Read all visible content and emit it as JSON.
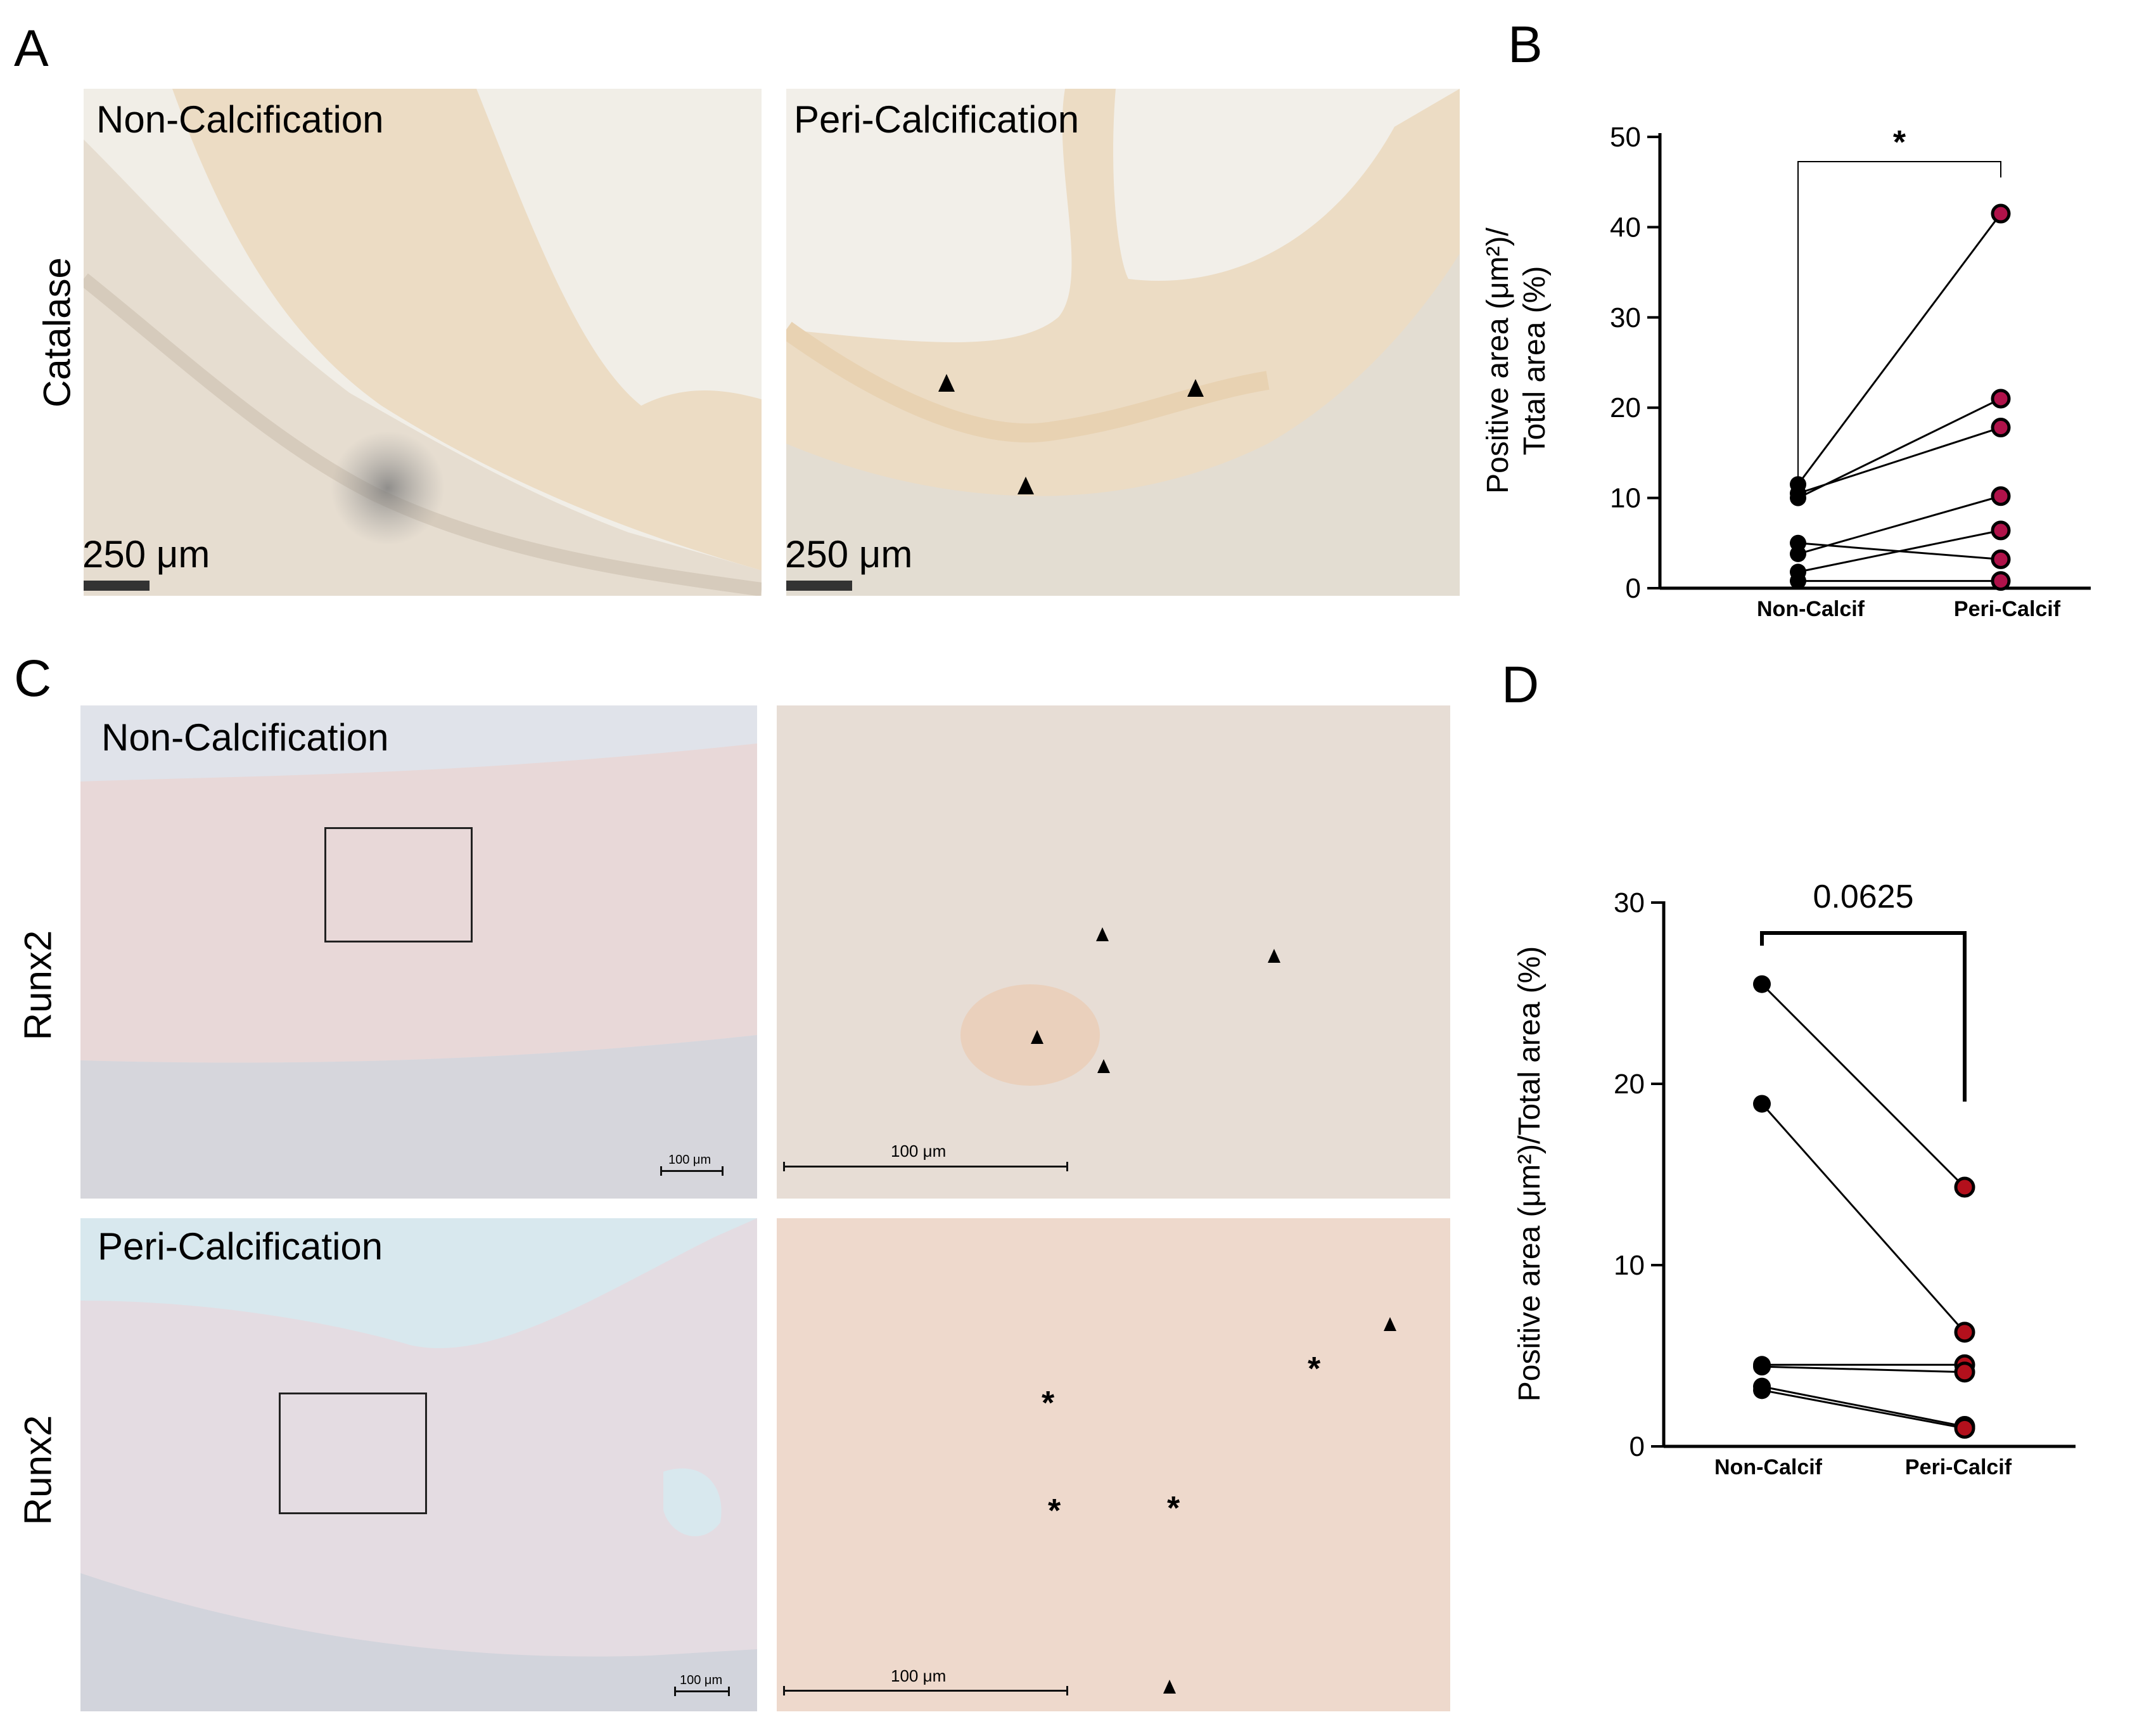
{
  "figure": {
    "panels": {
      "A": "A",
      "B": "B",
      "C": "C",
      "D": "D"
    },
    "panel_A": {
      "row_label": "Catalase",
      "left_title": "Non-Calcification",
      "right_title": "Peri-Calcification",
      "scale_left": "250 μm",
      "scale_right": "250 μm"
    },
    "panel_C": {
      "row_label_top": "Runx2",
      "row_label_bottom": "Runx2",
      "top_title": "Non-Calcification",
      "bottom_title": "Peri-Calcification",
      "scale_small": "100 μm",
      "scale_zoom": "100 μm"
    },
    "colors": {
      "non_calcif": "#000000",
      "peri_calcif_B": "#b0124a",
      "peri_calcif_D": "#b3101c"
    }
  },
  "chart_data": [
    {
      "panel": "B",
      "type": "scatter",
      "style": "paired before-after lines",
      "categories": [
        "Non-Calcif",
        "Peri-Calcif"
      ],
      "ylabel_line1": "Positive area (μm²)/",
      "ylabel_line2": "Total area (%)",
      "ylim": [
        0,
        50
      ],
      "yticks": [
        0,
        10,
        20,
        30,
        40,
        50
      ],
      "significance": "*",
      "pairs": [
        [
          11.5,
          41.5
        ],
        [
          10,
          21
        ],
        [
          10.5,
          17.8
        ],
        [
          5,
          3.2
        ],
        [
          3.8,
          10.2
        ],
        [
          1.8,
          6.4
        ],
        [
          0.8,
          0.8
        ]
      ]
    },
    {
      "panel": "D",
      "type": "scatter",
      "style": "paired before-after lines",
      "categories": [
        "Non-Calcif",
        "Peri-Calcif"
      ],
      "ylabel": "Positive area (μm²)/Total area (%)",
      "ylim": [
        0,
        30
      ],
      "yticks": [
        0,
        10,
        20,
        30
      ],
      "significance": "0.0625",
      "pairs": [
        [
          25.5,
          14.3
        ],
        [
          18.9,
          6.3
        ],
        [
          4.5,
          4.5
        ],
        [
          4.4,
          4.1
        ],
        [
          3.3,
          1.1
        ],
        [
          3.1,
          1.0
        ]
      ]
    }
  ]
}
